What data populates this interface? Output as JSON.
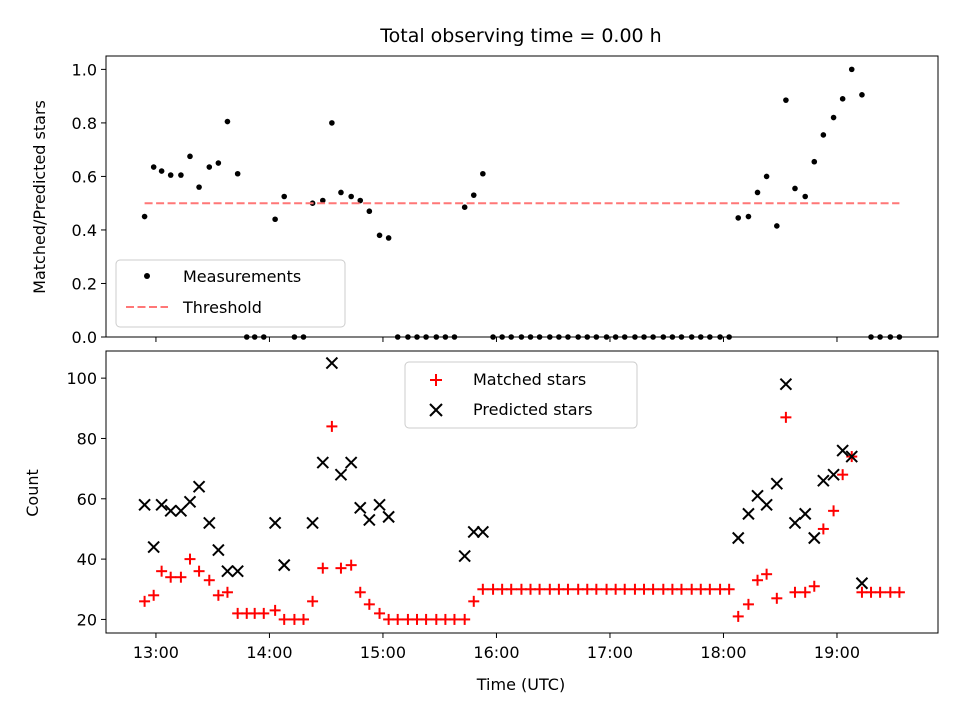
{
  "title": "Total observing time = 0.00 h",
  "colors": {
    "measurements": "#000000",
    "threshold": "#ff7777",
    "matched": "#ff0000",
    "predicted": "#000000"
  },
  "chart_data": [
    {
      "type": "scatter",
      "ylabel": "Matched/Predicted stars",
      "xlim": [
        12.56,
        19.89
      ],
      "ylim": [
        0,
        1.05
      ],
      "x_ticks": [
        13,
        14,
        15,
        16,
        17,
        18,
        19
      ],
      "x_tick_labels_visible": false,
      "y_ticks": [
        0.0,
        0.2,
        0.4,
        0.6,
        0.8,
        1.0
      ],
      "y_tick_labels": [
        "0.0",
        "0.2",
        "0.4",
        "0.6",
        "0.8",
        "1.0"
      ],
      "legend_position": "lower-left",
      "legend": [
        "Measurements",
        "Threshold"
      ],
      "series": [
        {
          "name": "Measurements",
          "marker": "dot",
          "x": [
            12.9,
            12.98,
            13.05,
            13.13,
            13.22,
            13.3,
            13.38,
            13.47,
            13.55,
            13.63,
            13.72,
            13.8,
            13.87,
            13.95,
            14.05,
            14.13,
            14.22,
            14.3,
            14.38,
            14.47,
            14.55,
            14.63,
            14.72,
            14.8,
            14.88,
            14.97,
            15.05,
            15.13,
            15.22,
            15.3,
            15.38,
            15.47,
            15.55,
            15.63,
            15.72,
            15.8,
            15.88,
            15.97,
            16.05,
            16.13,
            16.22,
            16.3,
            16.38,
            16.47,
            16.55,
            16.63,
            16.72,
            16.8,
            16.88,
            16.97,
            17.05,
            17.13,
            17.22,
            17.3,
            17.38,
            17.47,
            17.55,
            17.63,
            17.72,
            17.8,
            17.88,
            17.97,
            18.05,
            18.13,
            18.22,
            18.3,
            18.38,
            18.47,
            18.55,
            18.63,
            18.72,
            18.8,
            18.88,
            18.97,
            19.05,
            19.13,
            19.22,
            19.3,
            19.38,
            19.47,
            19.55
          ],
          "y": [
            0.45,
            0.635,
            0.62,
            0.605,
            0.605,
            0.675,
            0.56,
            0.635,
            0.65,
            0.805,
            0.61,
            0.0,
            0.0,
            0.0,
            0.44,
            0.525,
            0.0,
            0.0,
            0.5,
            0.51,
            0.8,
            0.54,
            0.525,
            0.51,
            0.47,
            0.38,
            0.37,
            0.0,
            0.0,
            0.0,
            0.0,
            0.0,
            0.0,
            0.0,
            0.485,
            0.53,
            0.61,
            0.0,
            0.0,
            0.0,
            0.0,
            0.0,
            0.0,
            0.0,
            0.0,
            0.0,
            0.0,
            0.0,
            0.0,
            0.0,
            0.0,
            0.0,
            0.0,
            0.0,
            0.0,
            0.0,
            0.0,
            0.0,
            0.0,
            0.0,
            0.0,
            0.0,
            0.0,
            0.445,
            0.45,
            0.54,
            0.6,
            0.415,
            0.885,
            0.555,
            0.525,
            0.655,
            0.755,
            0.82,
            0.89,
            1.0,
            0.905,
            0.0,
            0.0,
            0.0,
            0.0
          ]
        },
        {
          "name": "Threshold",
          "style": "dashed",
          "x": [
            12.9,
            19.55
          ],
          "y": [
            0.5,
            0.5
          ]
        }
      ]
    },
    {
      "type": "scatter",
      "xlabel": "Time (UTC)",
      "ylabel": "Count",
      "xlim": [
        12.56,
        19.89
      ],
      "ylim": [
        15.5,
        109
      ],
      "x_ticks": [
        13,
        14,
        15,
        16,
        17,
        18,
        19
      ],
      "x_tick_labels": [
        "13:00",
        "14:00",
        "15:00",
        "16:00",
        "17:00",
        "18:00",
        "19:00"
      ],
      "y_ticks": [
        20,
        40,
        60,
        80,
        100
      ],
      "y_tick_labels": [
        "20",
        "40",
        "60",
        "80",
        "100"
      ],
      "legend_position": "upper-center",
      "legend": [
        "Matched stars",
        "Predicted stars"
      ],
      "series": [
        {
          "name": "Matched stars",
          "marker": "plus",
          "x": [
            12.9,
            12.98,
            13.05,
            13.13,
            13.22,
            13.3,
            13.38,
            13.47,
            13.55,
            13.63,
            13.72,
            13.8,
            13.87,
            13.95,
            14.05,
            14.13,
            14.22,
            14.3,
            14.38,
            14.47,
            14.55,
            14.63,
            14.72,
            14.8,
            14.88,
            14.97,
            15.05,
            15.13,
            15.22,
            15.3,
            15.38,
            15.47,
            15.55,
            15.63,
            15.72,
            15.8,
            15.88,
            15.97,
            16.05,
            16.13,
            16.22,
            16.3,
            16.38,
            16.47,
            16.55,
            16.63,
            16.72,
            16.8,
            16.88,
            16.97,
            17.05,
            17.13,
            17.22,
            17.3,
            17.38,
            17.47,
            17.55,
            17.63,
            17.72,
            17.8,
            17.88,
            17.97,
            18.05,
            18.13,
            18.22,
            18.3,
            18.38,
            18.47,
            18.55,
            18.63,
            18.72,
            18.8,
            18.88,
            18.97,
            19.05,
            19.13,
            19.22,
            19.3,
            19.38,
            19.47,
            19.55
          ],
          "y": [
            26,
            28,
            36,
            34,
            34,
            40,
            36,
            33,
            28,
            29,
            22,
            22,
            22,
            22,
            23,
            20,
            20,
            20,
            26,
            37,
            84,
            37,
            38,
            29,
            25,
            22,
            20,
            20,
            20,
            20,
            20,
            20,
            20,
            20,
            20,
            26,
            30,
            30,
            30,
            30,
            30,
            30,
            30,
            30,
            30,
            30,
            30,
            30,
            30,
            30,
            30,
            30,
            30,
            30,
            30,
            30,
            30,
            30,
            30,
            30,
            30,
            30,
            30,
            21,
            25,
            33,
            35,
            27,
            87,
            29,
            29,
            31,
            50,
            56,
            68,
            74,
            29,
            29,
            29,
            29,
            29
          ]
        },
        {
          "name": "Predicted stars",
          "marker": "x",
          "x": [
            12.9,
            12.98,
            13.05,
            13.13,
            13.22,
            13.3,
            13.38,
            13.47,
            13.55,
            13.63,
            13.72,
            14.05,
            14.13,
            14.38,
            14.47,
            14.55,
            14.63,
            14.72,
            14.8,
            14.88,
            14.97,
            15.05,
            15.72,
            15.8,
            15.88,
            18.13,
            18.22,
            18.3,
            18.38,
            18.47,
            18.55,
            18.63,
            18.72,
            18.8,
            18.88,
            18.97,
            19.05,
            19.13,
            19.22
          ],
          "y": [
            58,
            44,
            58,
            56,
            56,
            59,
            64,
            52,
            43,
            36,
            36,
            52,
            38,
            52,
            72,
            105,
            68,
            72,
            57,
            53,
            58,
            54,
            41,
            49,
            49,
            47,
            55,
            61,
            58,
            65,
            98,
            52,
            55,
            47,
            66,
            68,
            76,
            74,
            32
          ]
        }
      ]
    }
  ]
}
